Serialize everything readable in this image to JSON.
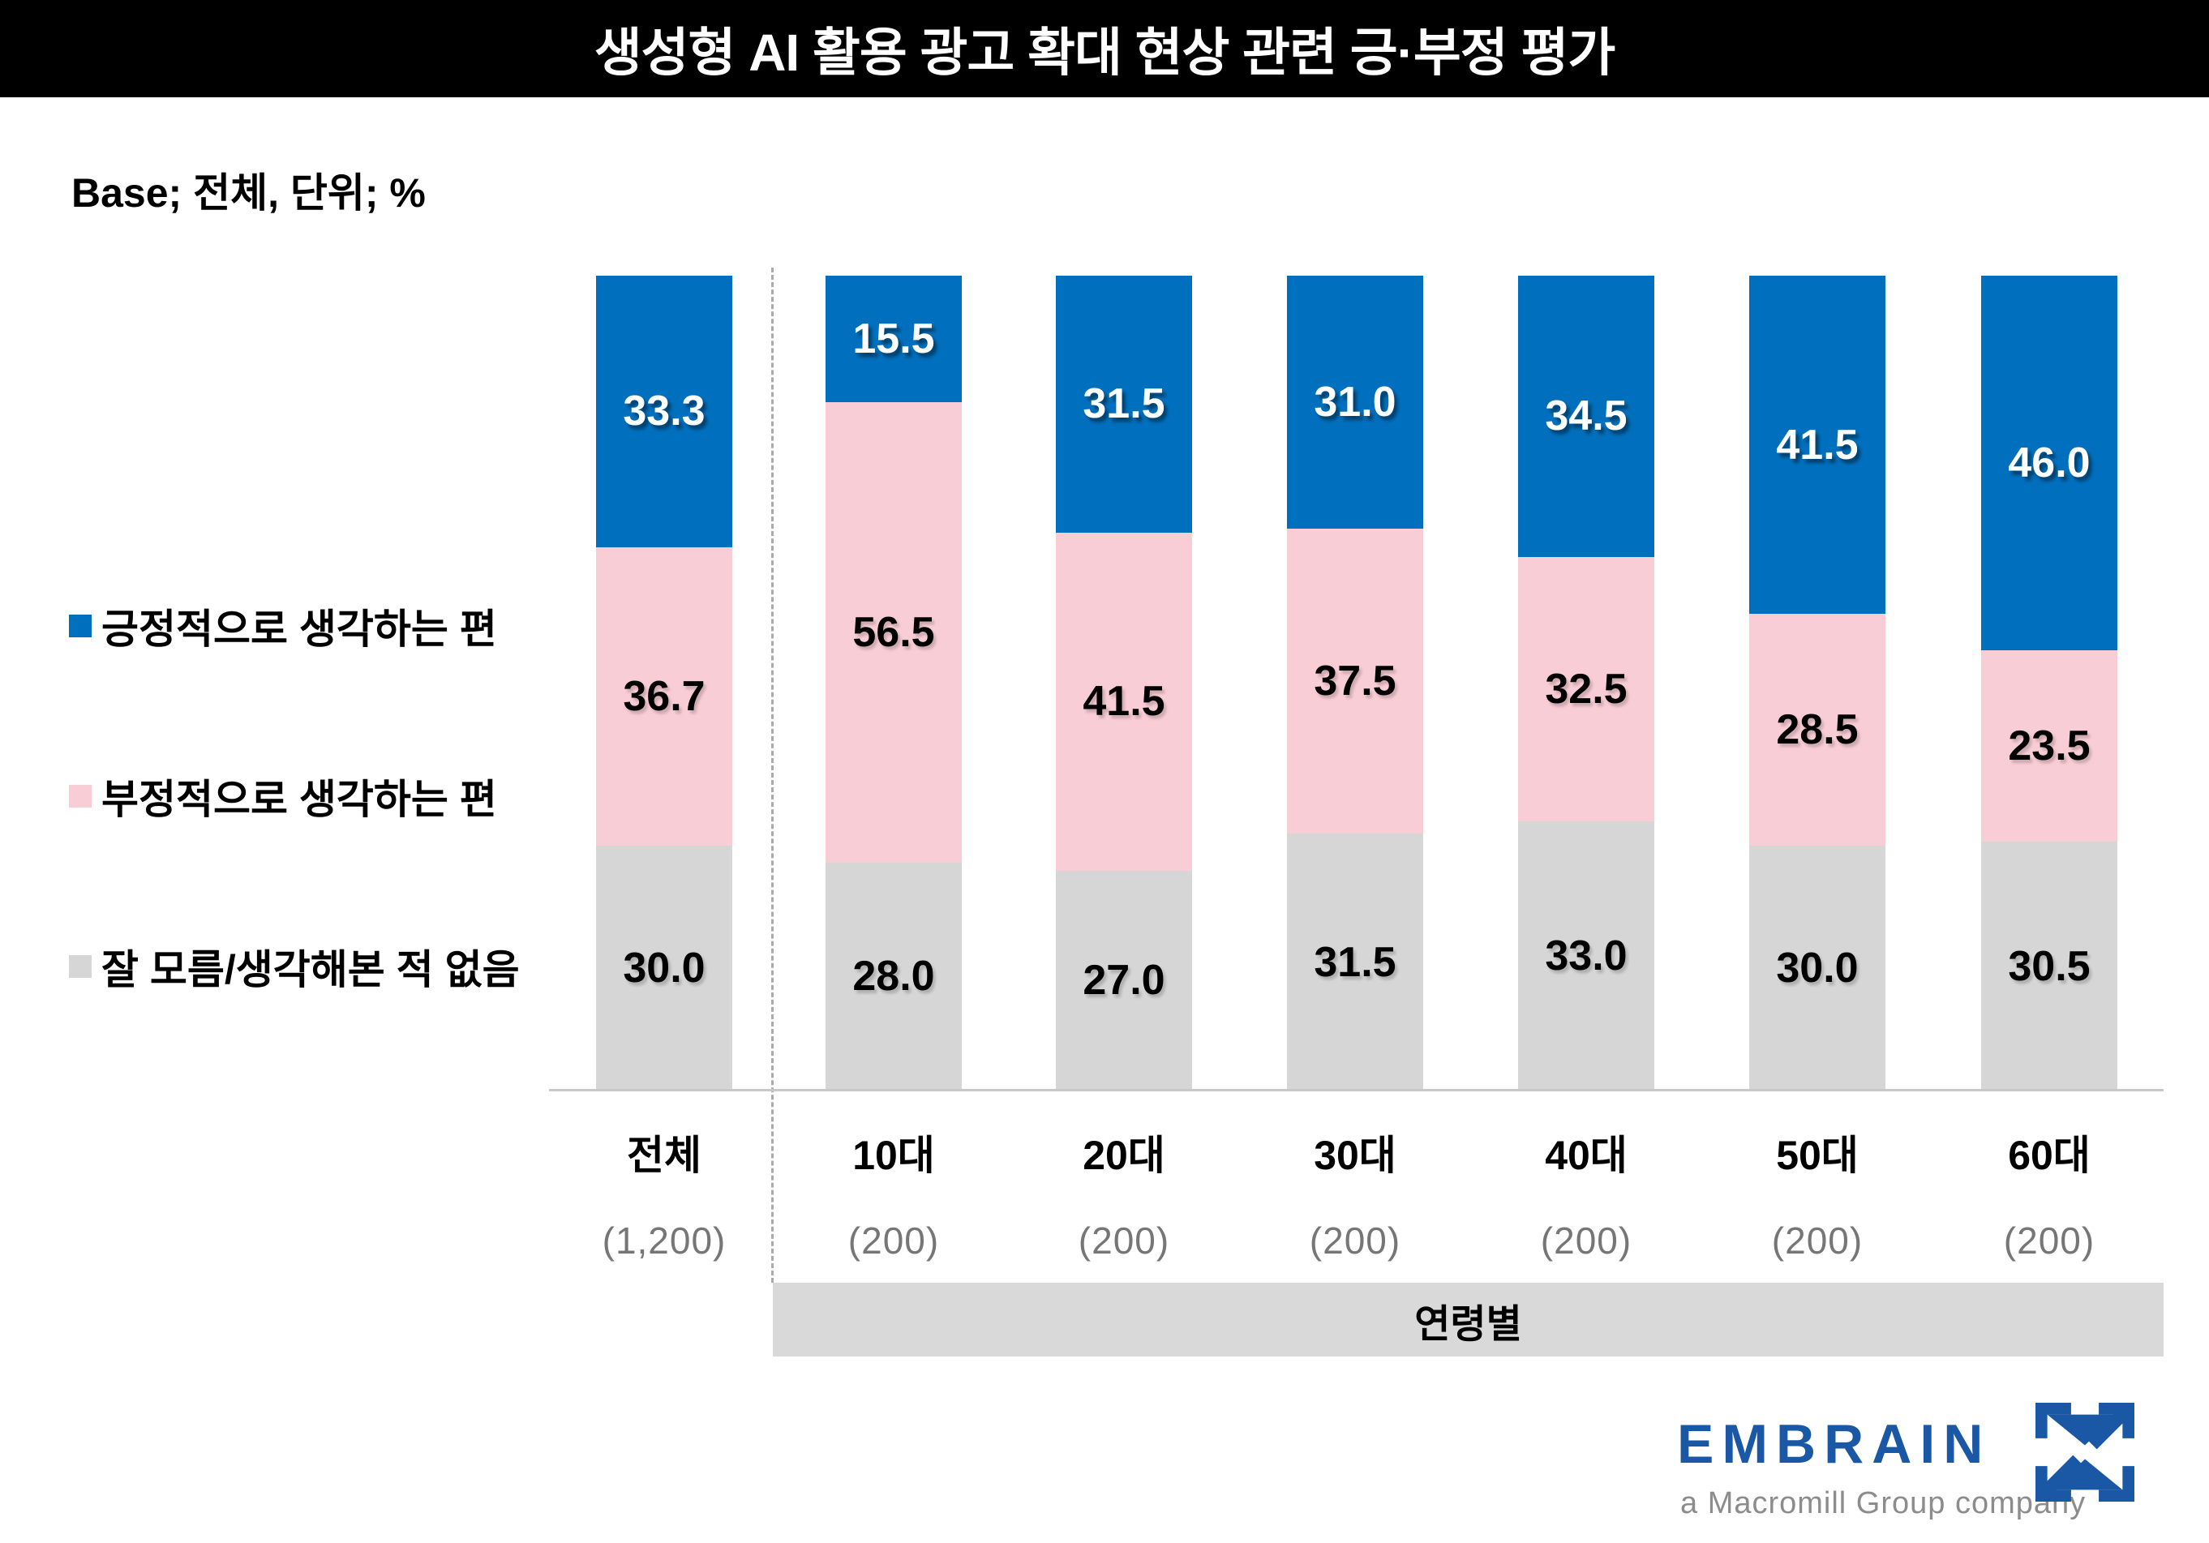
{
  "title": "생성형 AI 활용 광고 확대 현상 관련 긍·부정 평가",
  "base_note": "Base; 전체, 단위; %",
  "legend": [
    {
      "label": "긍정적으로 생각하는 편",
      "color": "#0070be"
    },
    {
      "label": "부정적으로 생각하는 편",
      "color": "#f9cdd5"
    },
    {
      "label": "잘 모름/생각해본 적 없음",
      "color": "#d6d6d6"
    }
  ],
  "chart_data": {
    "type": "bar",
    "stacked": true,
    "unit": "%",
    "title": "생성형 AI 활용 광고 확대 현상 관련 긍·부정 평가",
    "categories": [
      "전체",
      "10대",
      "20대",
      "30대",
      "40대",
      "50대",
      "60대"
    ],
    "bases": [
      "(1,200)",
      "(200)",
      "(200)",
      "(200)",
      "(200)",
      "(200)",
      "(200)"
    ],
    "series": [
      {
        "name": "긍정적으로 생각하는 편",
        "color": "#0070be",
        "values": [
          33.3,
          15.5,
          31.5,
          31.0,
          34.5,
          41.5,
          46.0
        ]
      },
      {
        "name": "부정적으로 생각하는 편",
        "color": "#f9cdd5",
        "values": [
          36.7,
          56.5,
          41.5,
          37.5,
          32.5,
          28.5,
          23.5
        ]
      },
      {
        "name": "잘 모름/생각해본 적 없음",
        "color": "#d6d6d6",
        "values": [
          30.0,
          28.0,
          27.0,
          31.5,
          33.0,
          30.0,
          30.5
        ]
      }
    ],
    "group_band_label": "연령별",
    "ylim": [
      0,
      100
    ],
    "grid": false,
    "legend_position": "left"
  },
  "footer": {
    "brand": "EMBRAIN",
    "brand_sub": "a Macromill Group company"
  }
}
